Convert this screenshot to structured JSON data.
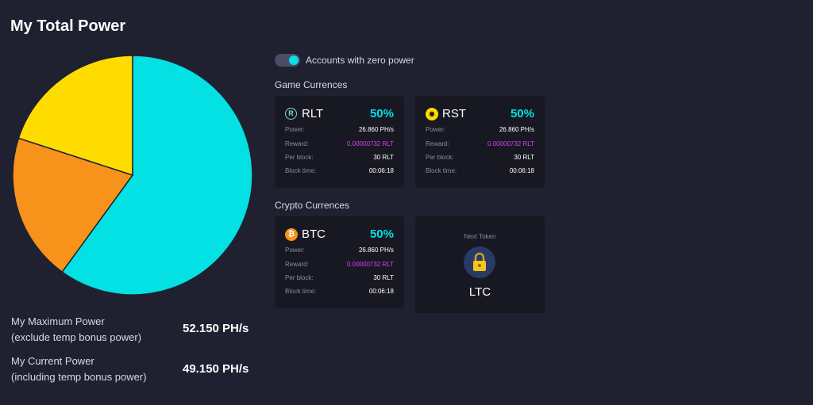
{
  "page": {
    "title": "My Total Power"
  },
  "chart_data": {
    "type": "pie",
    "values": [
      60,
      20,
      20
    ],
    "colors": [
      "#03e1e4",
      "#f7931a",
      "#ffdc00"
    ],
    "title": ""
  },
  "stats": {
    "max_label_1": "My Maximum Power",
    "max_label_2": "(exclude temp bonus power)",
    "max_value": "52.150 PH/s",
    "current_label_1": "My Current Power",
    "current_label_2": "(including temp bonus power)",
    "current_value": "49.150 PH/s"
  },
  "toggle": {
    "label": "Accounts with zero power",
    "on": true
  },
  "game_section": {
    "title": "Game Currences"
  },
  "crypto_section": {
    "title": "Crypto Currences"
  },
  "labels": {
    "power": "Power:",
    "reward": "Reward:",
    "per_block": "Per block:",
    "block_time": "Block time:"
  },
  "cards": {
    "rlt": {
      "name": "RLT",
      "icon": "rlt-coin-icon",
      "percent": "50%",
      "power": "26.860 PH/s",
      "reward": "0.00000732 RLT",
      "per_block": "30 RLT",
      "block_time": "00:06:18"
    },
    "rst": {
      "name": "RST",
      "icon": "rst-coin-icon",
      "percent": "50%",
      "power": "26.860 PH/s",
      "reward": "0.00000732 RLT",
      "per_block": "30 RLT",
      "block_time": "00:06:18"
    },
    "btc": {
      "name": "BTC",
      "icon": "btc-coin-icon",
      "percent": "50%",
      "power": "26.860 PH/s",
      "reward": "0.00000732 RLT",
      "per_block": "30 RLT",
      "block_time": "00:06:18"
    }
  },
  "next_token": {
    "label": "Next Token",
    "name": "LTC",
    "icon": "lock-icon"
  },
  "colors": {
    "background": "#1f2030",
    "card": "#171822",
    "accent": "#03e1e4",
    "reward": "#e040fb"
  }
}
